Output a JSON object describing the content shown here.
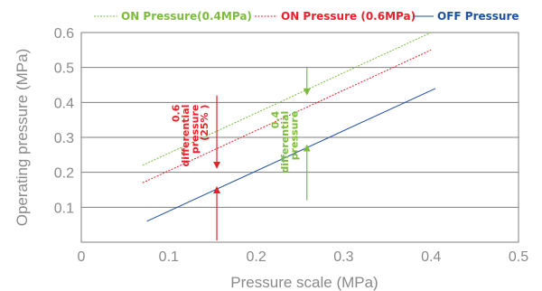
{
  "chart_data": {
    "type": "line",
    "xlabel": "Pressure scale (MPa)",
    "ylabel": "Operating pressure (MPa)",
    "xlim": [
      0,
      0.5
    ],
    "ylim": [
      0,
      0.6
    ],
    "xticks": [
      "0",
      "0.1",
      "0.2",
      "0.3",
      "0.4",
      "0.5"
    ],
    "yticks": [
      "0.1",
      "0.2",
      "0.3",
      "0.4",
      "0.5",
      "0.6"
    ],
    "grid": "horizontal",
    "legend_position": "top",
    "series": [
      {
        "name": "ON Pressure(0.4MPa)",
        "color": "#7dbb3f",
        "dash": "dashed",
        "x": [
          0.07,
          0.4
        ],
        "y": [
          0.22,
          0.6
        ]
      },
      {
        "name": "ON Pressure (0.6MPa)",
        "color": "#e8222c",
        "dash": "dashed",
        "x": [
          0.07,
          0.4
        ],
        "y": [
          0.17,
          0.55
        ]
      },
      {
        "name": "OFF Pressure",
        "color": "#1f4fa0",
        "dash": "solid",
        "x": [
          0.075,
          0.405
        ],
        "y": [
          0.06,
          0.44
        ]
      }
    ],
    "annotations": [
      {
        "lines": [
          "0.6",
          "differential",
          "pressure",
          "(25% )"
        ],
        "color": "#e8222c",
        "x": 0.155,
        "arrow_down": {
          "from": 0.42,
          "to": 0.22
        },
        "arrow_up": {
          "from": 0.005,
          "to": 0.15
        }
      },
      {
        "lines": [
          "0.4",
          "differential",
          "pressure"
        ],
        "color": "#7dbb3f",
        "x": 0.258,
        "arrow_down": {
          "from": 0.5,
          "to": 0.43
        },
        "arrow_up": {
          "from": 0.12,
          "to": 0.27
        }
      }
    ]
  }
}
